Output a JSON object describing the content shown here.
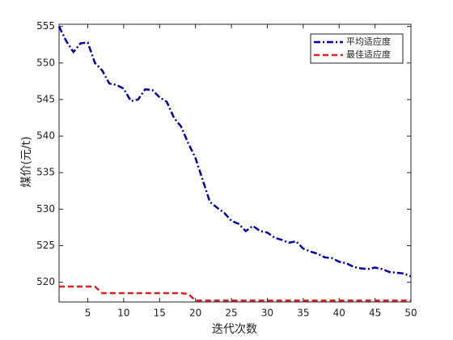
{
  "chart_data": {
    "type": "line",
    "x_label": "迭代次数",
    "y_label": "煤价(元/t)",
    "x": [
      1,
      2,
      3,
      4,
      5,
      6,
      7,
      8,
      9,
      10,
      11,
      12,
      13,
      14,
      15,
      16,
      17,
      18,
      19,
      20,
      21,
      22,
      23,
      24,
      25,
      26,
      27,
      28,
      29,
      30,
      31,
      32,
      33,
      34,
      35,
      36,
      37,
      38,
      39,
      40,
      41,
      42,
      43,
      44,
      45,
      46,
      47,
      48,
      49,
      50
    ],
    "series": [
      {
        "name": "平均适应度",
        "color": "#0000aa",
        "dash": "8 3 2 3",
        "values": [
          555,
          553,
          551.5,
          552.7,
          552.8,
          550,
          549,
          547.2,
          547,
          546.5,
          544.8,
          545,
          546.4,
          546.3,
          545.3,
          544.7,
          542.5,
          541.3,
          539,
          537,
          534,
          531,
          530.2,
          529.5,
          528.4,
          528,
          527,
          527.7,
          527,
          526.8,
          526.1,
          525.8,
          525.4,
          525.6,
          524.6,
          524.2,
          523.9,
          523.4,
          523.3,
          522.8,
          522.6,
          522.1,
          521.9,
          521.8,
          522,
          521.8,
          521.4,
          521.3,
          521.2,
          520.8
        ]
      },
      {
        "name": "最佳适应度",
        "color": "#e02020",
        "dash": "7 4",
        "values": [
          519.4,
          519.4,
          519.4,
          519.4,
          519.4,
          519.4,
          518.5,
          518.5,
          518.5,
          518.5,
          518.5,
          518.5,
          518.5,
          518.5,
          518.5,
          518.5,
          518.5,
          518.5,
          518.4,
          517.5,
          517.5,
          517.5,
          517.5,
          517.5,
          517.5,
          517.5,
          517.5,
          517.5,
          517.5,
          517.5,
          517.5,
          517.5,
          517.5,
          517.5,
          517.5,
          517.5,
          517.5,
          517.5,
          517.5,
          517.5,
          517.5,
          517.5,
          517.5,
          517.5,
          517.5,
          517.5,
          517.5,
          517.5,
          517.5,
          517.5
        ]
      }
    ],
    "xlim": [
      1,
      50
    ],
    "ylim": [
      517.3,
      555.3
    ],
    "xticks": [
      5,
      10,
      15,
      20,
      25,
      30,
      35,
      40,
      45,
      50
    ],
    "yticks": [
      520,
      525,
      530,
      535,
      540,
      545,
      550,
      555
    ],
    "legend": "top-right",
    "grid": false
  }
}
